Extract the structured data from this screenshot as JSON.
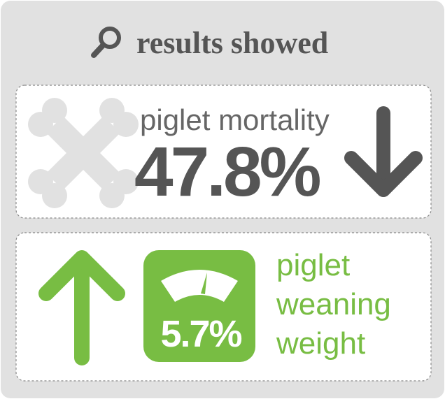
{
  "header": {
    "title": "results showed"
  },
  "cards": [
    {
      "label": "piglet mortality",
      "value": "47.8%"
    },
    {
      "label": [
        "piglet",
        "weaning",
        "weight"
      ],
      "value": "5.7%"
    }
  ]
}
